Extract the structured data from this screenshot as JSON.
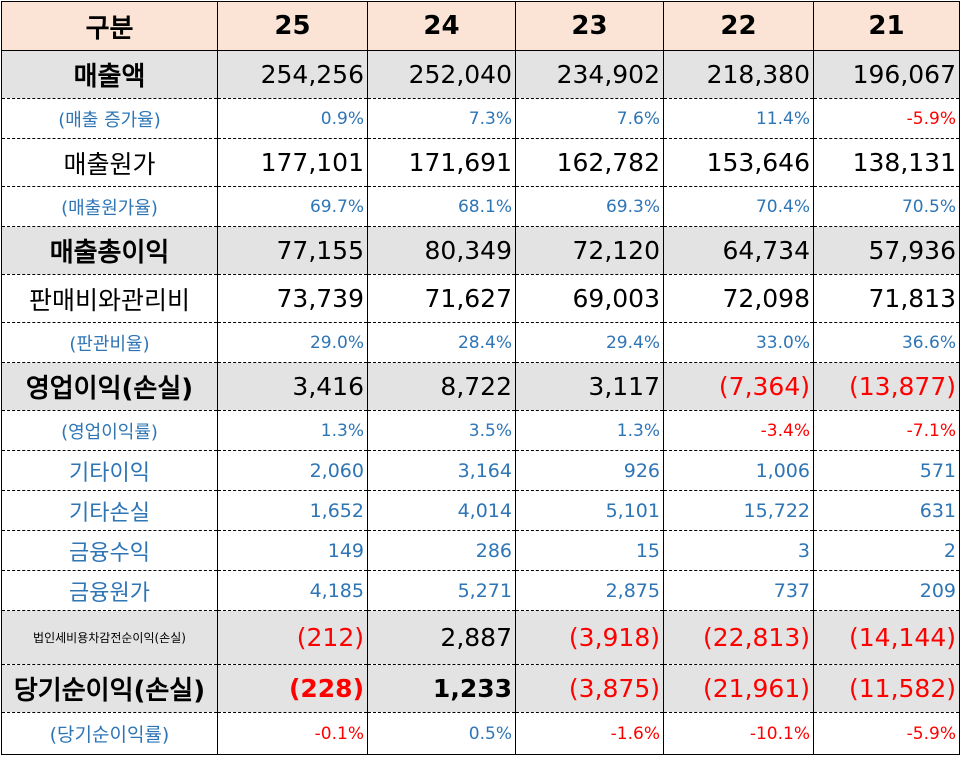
{
  "header": {
    "label": "구분",
    "years": [
      "25",
      "24",
      "23",
      "22",
      "21"
    ]
  },
  "rows": [
    {
      "label": "매출액",
      "values": [
        "254,256",
        "252,040",
        "234,902",
        "218,380",
        "196,067"
      ]
    },
    {
      "label": "(매출 증가율)",
      "values": [
        "0.9%",
        "7.3%",
        "7.6%",
        "11.4%",
        "-5.9%"
      ]
    },
    {
      "label": "매출원가",
      "values": [
        "177,101",
        "171,691",
        "162,782",
        "153,646",
        "138,131"
      ]
    },
    {
      "label": "(매출원가율)",
      "values": [
        "69.7%",
        "68.1%",
        "69.3%",
        "70.4%",
        "70.5%"
      ]
    },
    {
      "label": "매출총이익",
      "values": [
        "77,155",
        "80,349",
        "72,120",
        "64,734",
        "57,936"
      ]
    },
    {
      "label": "판매비와관리비",
      "values": [
        "73,739",
        "71,627",
        "69,003",
        "72,098",
        "71,813"
      ]
    },
    {
      "label": "(판관비율)",
      "values": [
        "29.0%",
        "28.4%",
        "29.4%",
        "33.0%",
        "36.6%"
      ]
    },
    {
      "label": "영업이익(손실)",
      "values": [
        "3,416",
        "8,722",
        "3,117",
        "(7,364)",
        "(13,877)"
      ]
    },
    {
      "label": "(영업이익률)",
      "values": [
        "1.3%",
        "3.5%",
        "1.3%",
        "-3.4%",
        "-7.1%"
      ]
    },
    {
      "label": "기타이익",
      "values": [
        "2,060",
        "3,164",
        "926",
        "1,006",
        "571"
      ]
    },
    {
      "label": "기타손실",
      "values": [
        "1,652",
        "4,014",
        "5,101",
        "15,722",
        "631"
      ]
    },
    {
      "label": "금융수익",
      "values": [
        "149",
        "286",
        "15",
        "3",
        "2"
      ]
    },
    {
      "label": "금융원가",
      "values": [
        "4,185",
        "5,271",
        "2,875",
        "737",
        "209"
      ]
    },
    {
      "label": "법인세비용차감전순이익(손실)",
      "values": [
        "(212)",
        "2,887",
        "(3,918)",
        "(22,813)",
        "(14,144)"
      ]
    },
    {
      "label": "당기순이익(손실)",
      "values": [
        "(228)",
        "1,233",
        "(3,875)",
        "(21,961)",
        "(11,582)"
      ]
    },
    {
      "label": "(당기순이익률)",
      "values": [
        "-0.1%",
        "0.5%",
        "-1.6%",
        "-10.1%",
        "-5.9%"
      ]
    }
  ],
  "colors": {
    "header_bg": "#fbe4d5",
    "highlight_bg": "#e3e3e3",
    "ratio_text": "#2e75b6",
    "negative_text": "#ff0000"
  }
}
